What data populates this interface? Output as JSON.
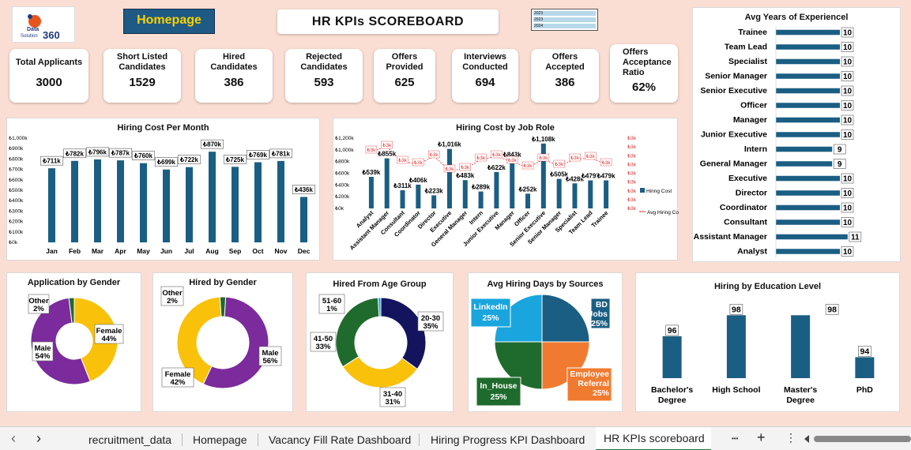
{
  "brand": {
    "line1": "Data",
    "line2": "Solution",
    "line3": "360"
  },
  "homepage_button": "Homepage",
  "title": "HR  KPIs  SCOREBOARD",
  "slicer_items": [
    "2023",
    "2023",
    "2024"
  ],
  "kpis": [
    {
      "label": "Total Applicants",
      "value": "3000"
    },
    {
      "label": "Short Listed Candidates",
      "value": "1529"
    },
    {
      "label": "Hired Candidates",
      "value": "386"
    },
    {
      "label": "Rejected Candidates",
      "value": "593"
    },
    {
      "label": "Offers Provided",
      "value": "625"
    },
    {
      "label": "Interviews Conducted",
      "value": "694"
    },
    {
      "label": "Offers Accepted",
      "value": "386"
    },
    {
      "label": "Offers Acceptance Ratio",
      "value": "62%"
    }
  ],
  "colors": {
    "bar": "#1b5e83",
    "purple": "#7b2b9b",
    "yellow": "#f9c10a",
    "green": "#1f6b2d",
    "navy": "#14145e",
    "lightblue": "#1aa5de",
    "orange": "#f07b30",
    "red": "#e03030"
  },
  "chart_data": [
    {
      "id": "monthly",
      "type": "bar",
      "title": "Hiring Cost Per Month",
      "categories": [
        "Jan",
        "Feb",
        "Mar",
        "Apr",
        "May",
        "Jun",
        "Jul",
        "Aug",
        "Sep",
        "Oct",
        "Nov",
        "Dec"
      ],
      "values": [
        711,
        782,
        796,
        787,
        760,
        699,
        722,
        870,
        725,
        769,
        781,
        436
      ],
      "labels": [
        "₺711k",
        "₺782k",
        "₺796k",
        "₺787k",
        "₺760k",
        "₺699k",
        "₺722k",
        "₺870k",
        "₺725k",
        "₺769k",
        "₺781k",
        "₺436k"
      ],
      "yticks": [
        "₺0k",
        "₺100k",
        "₺200k",
        "₺300k",
        "₺400k",
        "₺500k",
        "₺600k",
        "₺700k",
        "₺800k",
        "₺900k",
        "₺1,000k"
      ],
      "ylim": [
        0,
        1000
      ]
    },
    {
      "id": "jobrole",
      "type": "bar+line",
      "title": "Hiring Cost by Job Role",
      "categories": [
        "Analyst",
        "Assistant Manager",
        "Consultant",
        "Coordinator",
        "Director",
        "Executive",
        "General Manager",
        "Intern",
        "Junior Executive",
        "Manager",
        "Officer",
        "Senior Executive",
        "Senior Manager",
        "Specialist",
        "Team Lead",
        "Trainee"
      ],
      "series": [
        {
          "name": "Hiring Cost",
          "values": [
            539,
            855,
            311,
            406,
            223,
            1016,
            483,
            289,
            622,
            843,
            252,
            1108,
            505,
            428,
            479,
            479
          ],
          "labels": [
            "₺539k",
            "₺855k",
            "₺311k",
            "₺406k",
            "₺223k",
            "₺1,016k",
            "₺483k",
            "₺289k",
            "₺622k",
            "₺843k",
            "₺252k",
            "₺1,108k",
            "₺505k",
            "₺428k",
            "₺479k",
            "₺479k"
          ]
        },
        {
          "name": "Avg Hiring Cost",
          "values": [
            3,
            3,
            3,
            3,
            3,
            3,
            3,
            3,
            3,
            3,
            3,
            3,
            3,
            3,
            3,
            3
          ],
          "labels": [
            "₺3k",
            "₺3k",
            "₺3k",
            "₺3k",
            "₺3k",
            "₺3k",
            "₺3k",
            "₺3k",
            "₺3k",
            "₺3k",
            "₺3k",
            "₺3k",
            "₺3k",
            "₺3k",
            "₺3k",
            "₺3k"
          ]
        }
      ],
      "yticks": [
        "₺0k",
        "₺200k",
        "₺400k",
        "₺600k",
        "₺800k",
        "₺1,000k",
        "₺1,200k"
      ],
      "ylim": [
        0,
        1200
      ],
      "y2ticks": [
        "₺3k",
        "₺3k",
        "₺3k",
        "₺3k",
        "₺3k",
        "₺3k",
        "₺3k",
        "₺3k",
        "₺3k"
      ]
    },
    {
      "id": "experience",
      "type": "bar",
      "orientation": "horizontal",
      "title": "Avg Years of Experiencel",
      "categories": [
        "Trainee",
        "Team Lead",
        "Specialist",
        "Senior Manager",
        "Senior Executive",
        "Officer",
        "Manager",
        "Junior Executive",
        "Intern",
        "General Manager",
        "Executive",
        "Director",
        "Coordinator",
        "Consultant",
        "Assistant Manager",
        "Analyst"
      ],
      "values": [
        10,
        10,
        10,
        10,
        10,
        10,
        10,
        10,
        9,
        9,
        10,
        10,
        10,
        10,
        11,
        10
      ]
    },
    {
      "id": "app_gender",
      "type": "pie",
      "title": "Application by Gender",
      "slices": [
        {
          "name": "Female",
          "value": 44,
          "label": "44%"
        },
        {
          "name": "Male",
          "value": 54,
          "label": "54%"
        },
        {
          "name": "Other",
          "value": 2,
          "label": "2%"
        }
      ]
    },
    {
      "id": "hired_gender",
      "type": "pie",
      "title": "Hired by Gender",
      "slices": [
        {
          "name": "Male",
          "value": 56,
          "label": "56%"
        },
        {
          "name": "Female",
          "value": 42,
          "label": "42%"
        },
        {
          "name": "Other",
          "value": 2,
          "label": "2%"
        }
      ]
    },
    {
      "id": "age",
      "type": "pie",
      "title": "Hired From Age Group",
      "slices": [
        {
          "name": "20-30",
          "value": 35,
          "label": "35%"
        },
        {
          "name": "31-40",
          "value": 31,
          "label": "31%"
        },
        {
          "name": "41-50",
          "value": 33,
          "label": "33%"
        },
        {
          "name": "51-60",
          "value": 1,
          "label": "1%"
        }
      ]
    },
    {
      "id": "sources",
      "type": "pie",
      "title": "Avg Hiring Days by Sources",
      "slices": [
        {
          "name": "BD Jobs",
          "value": 25,
          "label": "25%"
        },
        {
          "name": "Employee Referral",
          "value": 25,
          "label": "25%"
        },
        {
          "name": "In_House",
          "value": 25,
          "label": "25%"
        },
        {
          "name": "LinkedIn",
          "value": 25,
          "label": "25%"
        }
      ]
    },
    {
      "id": "education",
      "type": "bar",
      "title": "Hiring by Education Level",
      "categories": [
        "Bachelor's Degree",
        "High School",
        "Master's Degree",
        "PhD"
      ],
      "values": [
        96,
        98,
        98,
        94
      ],
      "ylim": [
        92,
        99
      ]
    }
  ],
  "tabs": [
    "recruitment_data",
    "Homepage",
    "Vacancy Fill Rate Dashboard",
    "Hiring Progress KPI Dashboard",
    "HR KPIs scoreboard"
  ],
  "tab_nav": {
    "prev": "‹",
    "next": "›",
    "more": "•••",
    "add": "+",
    "menu": "⋮"
  }
}
